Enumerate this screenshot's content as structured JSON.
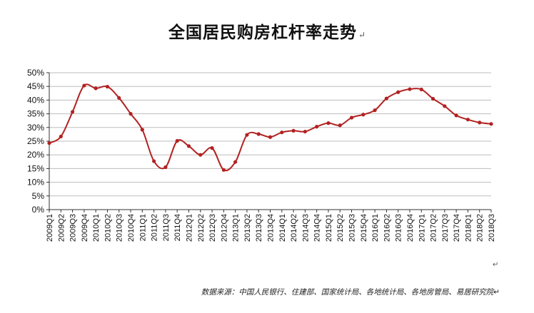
{
  "title": "全国居民购房杠杆率走势",
  "return_mark": "↵",
  "source_note": "数据来源：中国人民银行、住建部、国家统计局、各地统计局、各地房管局、易居研究院↵",
  "colors": {
    "line": "#b22222",
    "grid": "#bdbdbd",
    "axis": "#333333",
    "text": "#111111"
  },
  "chart_data": {
    "type": "line",
    "title": "全国居民购房杠杆率走势",
    "xlabel": "",
    "ylabel": "",
    "ylim": [
      0,
      50
    ],
    "ytick_step": 5,
    "y_format": "percent",
    "yticks": [
      "0%",
      "5%",
      "10%",
      "15%",
      "20%",
      "25%",
      "30%",
      "35%",
      "40%",
      "45%",
      "50%"
    ],
    "grid": true,
    "legend": "none",
    "categories": [
      "2009Q1",
      "2009Q2",
      "2009Q3",
      "2009Q4",
      "2010Q1",
      "2010Q2",
      "2010Q3",
      "2010Q4",
      "2011Q1",
      "2011Q2",
      "2011Q3",
      "2011Q4",
      "2012Q1",
      "2012Q2",
      "2012Q3",
      "2012Q4",
      "2013Q1",
      "2013Q2",
      "2013Q3",
      "2013Q4",
      "2014Q1",
      "2014Q2",
      "2014Q3",
      "2014Q4",
      "2015Q1",
      "2015Q2",
      "2015Q3",
      "2015Q4",
      "2016Q1",
      "2016Q2",
      "2016Q3",
      "2016Q4",
      "2017Q1",
      "2017Q2",
      "2017Q3",
      "2017Q4",
      "2018Q1",
      "2018Q2",
      "2018Q3"
    ],
    "series": [
      {
        "values": [
          24.3,
          26.7,
          35.7,
          45.3,
          44.3,
          44.9,
          40.8,
          35.0,
          29.2,
          17.7,
          15.5,
          25.1,
          23.2,
          20.0,
          22.5,
          14.5,
          17.4,
          27.3,
          27.6,
          26.5,
          28.2,
          28.8,
          28.5,
          30.3,
          31.6,
          30.8,
          33.6,
          34.7,
          36.3,
          40.6,
          42.9,
          44.0,
          43.9,
          40.5,
          37.8,
          34.4,
          32.9,
          31.8,
          31.3
        ]
      }
    ]
  }
}
